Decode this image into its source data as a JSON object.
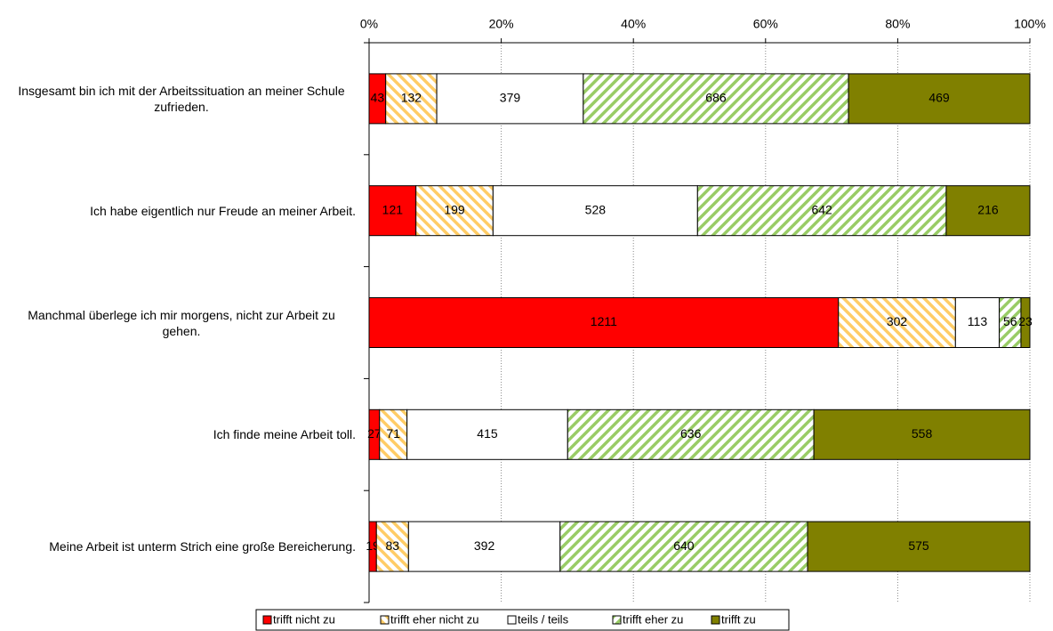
{
  "chart_data": {
    "type": "stacked100-barh",
    "categories": [
      "Insgesamt bin ich mit der Arbeitssituation an meiner Schule zufrieden.",
      "Ich habe eigentlich nur Freude an meiner Arbeit.",
      "Manchmal überlege ich mir morgens, nicht zur Arbeit zu gehen.",
      "Ich finde meine Arbeit toll.",
      "Meine Arbeit ist unterm Strich eine große Bereicherung."
    ],
    "series": [
      {
        "name": "trifft nicht zu",
        "color": "#ff0000",
        "values": [
          43,
          121,
          1211,
          27,
          19
        ]
      },
      {
        "name": "trifft eher nicht zu",
        "color": "#ffcc66",
        "hatch": "back",
        "values": [
          132,
          199,
          302,
          71,
          83
        ]
      },
      {
        "name": "teils / teils",
        "color": "#ffffff",
        "values": [
          379,
          528,
          113,
          415,
          392
        ]
      },
      {
        "name": "trifft eher zu",
        "color": "#99cc66",
        "hatch": "forward",
        "values": [
          686,
          642,
          56,
          636,
          640
        ]
      },
      {
        "name": "trifft zu",
        "color": "#808000",
        "values": [
          469,
          216,
          23,
          558,
          575
        ]
      }
    ],
    "xlim": [
      0,
      100
    ],
    "xticks": [
      {
        "value": 0,
        "label": "0%"
      },
      {
        "value": 20,
        "label": "20%"
      },
      {
        "value": 40,
        "label": "40%"
      },
      {
        "value": 60,
        "label": "60%"
      },
      {
        "value": 80,
        "label": "80%"
      },
      {
        "value": 100,
        "label": "100%"
      }
    ],
    "grid": true,
    "legend": "bottom"
  }
}
